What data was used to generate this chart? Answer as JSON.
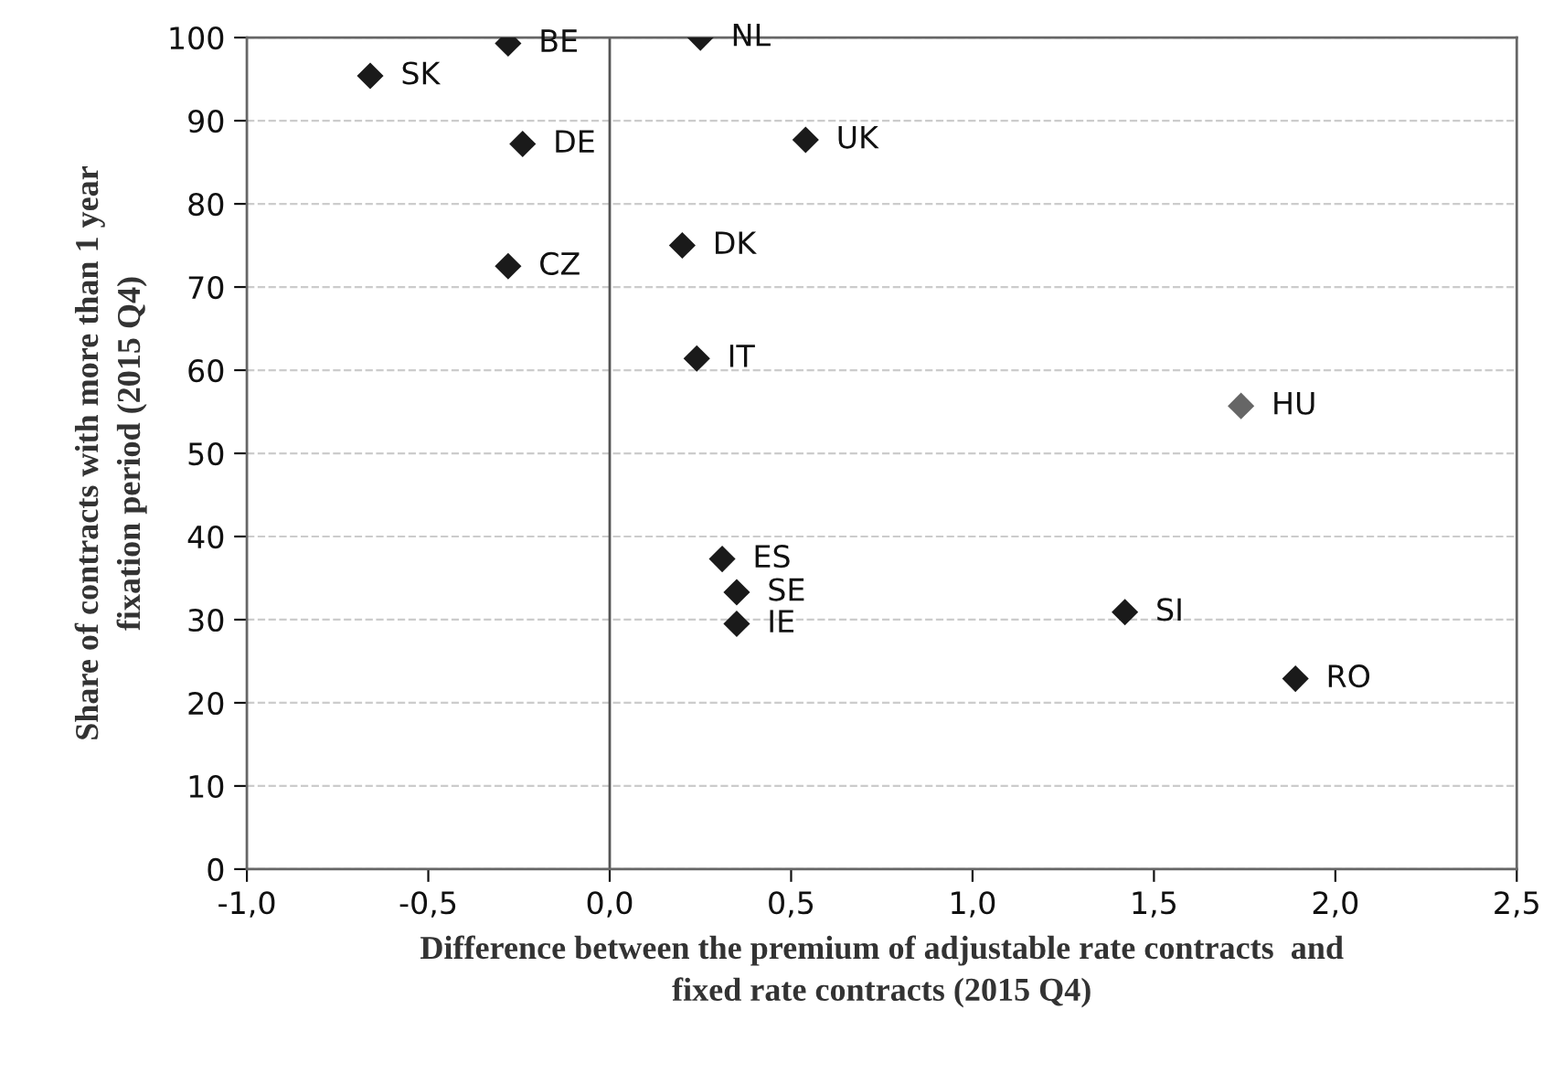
{
  "chart_data": {
    "type": "scatter",
    "xlabel": "Difference between the premium of adjustable rate contracts  and\nfixed rate contracts (2015 Q4)",
    "ylabel": "Share of contracts with more than 1 year\nfixation period (2015 Q4)",
    "series": [
      {
        "x": [
          -0.66,
          -0.28,
          0.25,
          -0.24,
          -0.28,
          0.54,
          0.2,
          0.24,
          1.74,
          0.31,
          0.35,
          0.35,
          1.42,
          1.89
        ],
        "values": [
          95.4,
          99.3,
          100,
          87.2,
          72.5,
          87.7,
          75.0,
          61.4,
          55.7,
          37.3,
          33.3,
          29.5,
          30.9,
          22.9
        ],
        "colors": [
          "#1a1a1a",
          "#1a1a1a",
          "#1a1a1a",
          "#1a1a1a",
          "#1a1a1a",
          "#1a1a1a",
          "#1a1a1a",
          "#1a1a1a",
          "#666666",
          "#1a1a1a",
          "#1a1a1a",
          "#1a1a1a",
          "#1a1a1a",
          "#1a1a1a"
        ]
      }
    ],
    "annotations": [
      {
        "text": "SK",
        "x": -0.66,
        "y": 95.4
      },
      {
        "text": "BE",
        "x": -0.28,
        "y": 99.3
      },
      {
        "text": "NL",
        "x": 0.25,
        "y": 100
      },
      {
        "text": "DE",
        "x": -0.24,
        "y": 87.2
      },
      {
        "text": "CZ",
        "x": -0.28,
        "y": 72.5
      },
      {
        "text": "UK",
        "x": 0.54,
        "y": 87.7
      },
      {
        "text": "DK",
        "x": 0.2,
        "y": 75.0
      },
      {
        "text": "IT",
        "x": 0.24,
        "y": 61.4
      },
      {
        "text": "HU",
        "x": 1.74,
        "y": 55.7
      },
      {
        "text": "ES",
        "x": 0.31,
        "y": 37.3
      },
      {
        "text": "SE",
        "x": 0.35,
        "y": 33.3
      },
      {
        "text": "IE",
        "x": 0.35,
        "y": 29.5
      },
      {
        "text": "SI",
        "x": 1.42,
        "y": 30.9
      },
      {
        "text": "RO",
        "x": 1.89,
        "y": 22.9
      }
    ],
    "xlim": [
      -1.0,
      2.5
    ],
    "xticks": [
      {
        "value": -1.0,
        "label": "-1,0"
      },
      {
        "value": -0.5,
        "label": "-0,5"
      },
      {
        "value": 0.0,
        "label": "0,0"
      },
      {
        "value": 0.5,
        "label": "0,5"
      },
      {
        "value": 1.0,
        "label": "1,0"
      },
      {
        "value": 1.5,
        "label": "1,5"
      },
      {
        "value": 2.0,
        "label": "2,0"
      },
      {
        "value": 2.5,
        "label": "2,5"
      }
    ],
    "ylim": [
      0,
      100
    ],
    "yticks": [
      0,
      10,
      20,
      30,
      40,
      50,
      60,
      70,
      80,
      90,
      100
    ],
    "ref_lines": [
      {
        "axis": "x",
        "value": 0,
        "color": "#555555"
      }
    ],
    "grid": "y",
    "marker": "diamond"
  }
}
